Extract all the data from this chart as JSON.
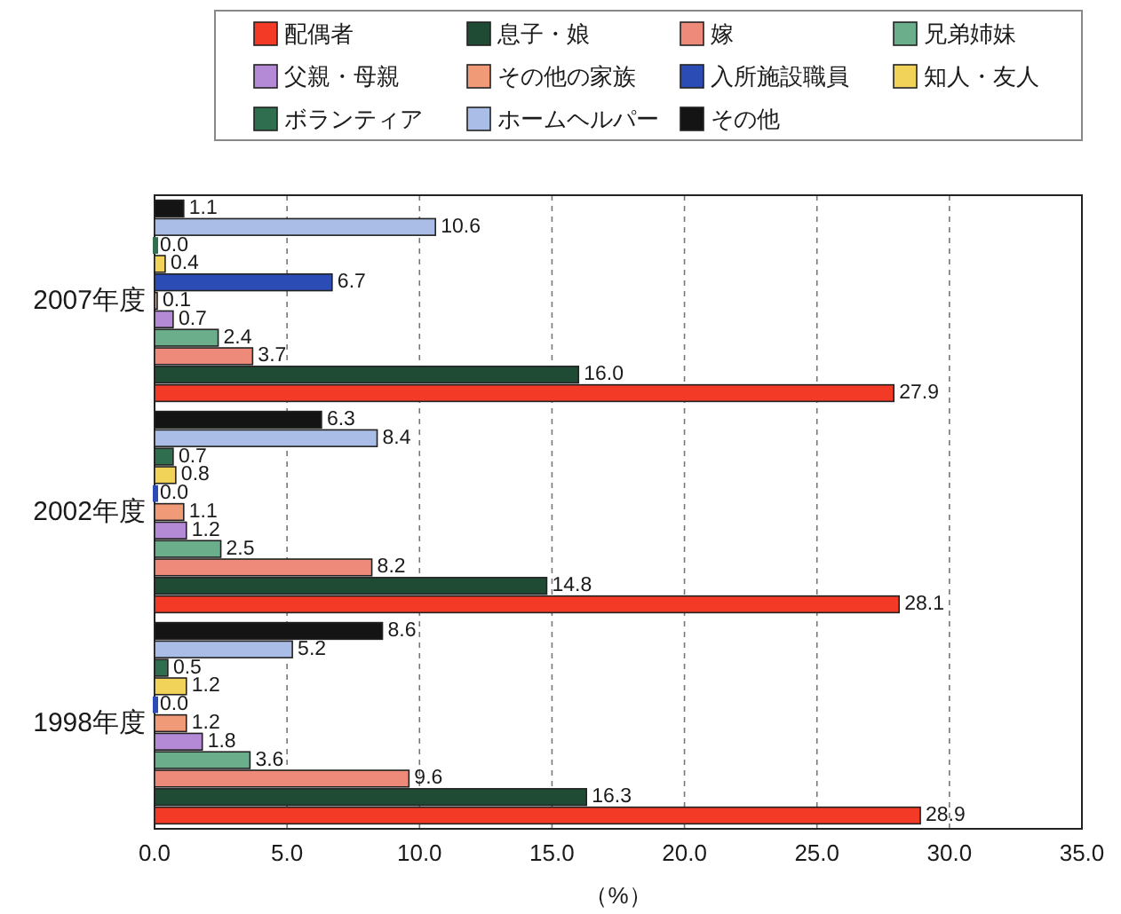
{
  "chart_data": {
    "type": "bar",
    "orientation": "horizontal",
    "categories": [
      "2007年度",
      "2002年度",
      "1998年度"
    ],
    "series": [
      {
        "name": "配偶者",
        "color": "#f23a26",
        "values": [
          27.9,
          28.1,
          28.9
        ],
        "value_labels": [
          "27.9",
          "28.1",
          "28.9"
        ]
      },
      {
        "name": "息子・娘",
        "color": "#1f4a33",
        "values": [
          16.0,
          14.8,
          16.3
        ],
        "value_labels": [
          "16.0",
          "14.8",
          "16.3"
        ]
      },
      {
        "name": "嫁",
        "color": "#ee8a7a",
        "values": [
          3.7,
          8.2,
          9.6
        ],
        "value_labels": [
          "3.7",
          "8.2",
          "9.6"
        ]
      },
      {
        "name": "兄弟姉妹",
        "color": "#6aae8c",
        "values": [
          2.4,
          2.5,
          3.6
        ],
        "value_labels": [
          "2.4",
          "2.5",
          "3.6"
        ]
      },
      {
        "name": "父親・母親",
        "color": "#b48ad6",
        "values": [
          0.7,
          1.2,
          1.8
        ],
        "value_labels": [
          "0.7",
          "1.2",
          "1.8"
        ]
      },
      {
        "name": "その他の家族",
        "color": "#f09a78",
        "values": [
          0.1,
          1.1,
          1.2
        ],
        "value_labels": [
          "0.1",
          "1.1",
          "1.2"
        ]
      },
      {
        "name": "入所施設職員",
        "color": "#2a4cb4",
        "values": [
          6.7,
          0.0,
          0.0
        ],
        "value_labels": [
          "6.7",
          "0.0",
          "0.0"
        ]
      },
      {
        "name": "知人・友人",
        "color": "#f2d35a",
        "values": [
          0.4,
          0.8,
          1.2
        ],
        "value_labels": [
          "0.4",
          "0.8",
          "1.2"
        ]
      },
      {
        "name": "ボランティア",
        "color": "#2f6e4e",
        "values": [
          0.0,
          0.7,
          0.5
        ],
        "value_labels": [
          "0.0",
          "0.7",
          "0.5"
        ]
      },
      {
        "name": "ホームヘルパー",
        "color": "#a9bde6",
        "values": [
          10.6,
          8.4,
          5.2
        ],
        "value_labels": [
          "10.6",
          "8.4",
          "5.2"
        ]
      },
      {
        "name": "その他",
        "color": "#141414",
        "values": [
          1.1,
          6.3,
          8.6
        ],
        "value_labels": [
          "1.1",
          "6.3",
          "8.6"
        ]
      }
    ],
    "xlim": [
      0,
      35
    ],
    "xticks": [
      {
        "value": 0,
        "label": "0.0"
      },
      {
        "value": 5,
        "label": "5.0"
      },
      {
        "value": 10,
        "label": "10.0"
      },
      {
        "value": 15,
        "label": "15.0"
      },
      {
        "value": 20,
        "label": "20.0"
      },
      {
        "value": 25,
        "label": "25.0"
      },
      {
        "value": 30,
        "label": "30.0"
      },
      {
        "value": 35,
        "label": "35.0"
      }
    ],
    "xlabel": "（%）",
    "grid": "x",
    "legend": "top"
  }
}
